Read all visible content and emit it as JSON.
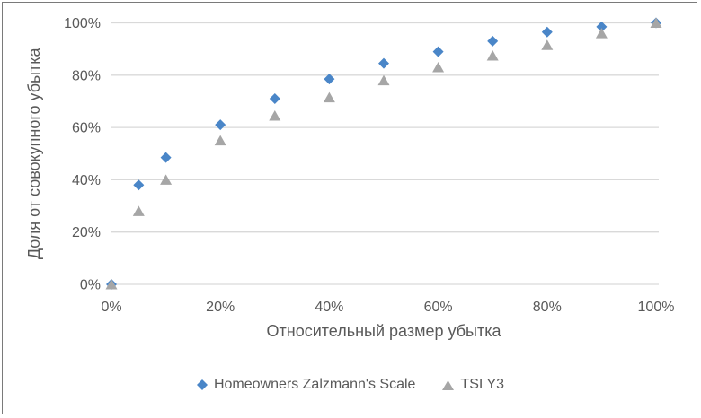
{
  "chart_data": {
    "type": "scatter",
    "x": [
      0,
      5,
      10,
      20,
      30,
      40,
      50,
      60,
      70,
      80,
      90,
      100
    ],
    "series": [
      {
        "name": "Homeowners Zalzmann's Scale",
        "marker": "diamond",
        "color": "#4A86C8",
        "values": [
          0,
          38,
          48.5,
          61,
          71,
          78.5,
          84.5,
          89,
          93,
          96.5,
          98.5,
          100
        ]
      },
      {
        "name": "TSI Y3",
        "marker": "triangle",
        "color": "#A6A6A6",
        "values": [
          0,
          28,
          40,
          55,
          64.5,
          71.5,
          78,
          83,
          87.5,
          91.5,
          96,
          100
        ]
      }
    ],
    "title": "",
    "xlabel": "Относительный размер убытка",
    "ylabel": "Доля от совокупного убытка",
    "xlim": [
      0,
      100
    ],
    "ylim": [
      0,
      100
    ],
    "x_ticks": {
      "values": [
        0,
        20,
        40,
        60,
        80,
        100
      ],
      "labels": [
        "0%",
        "20%",
        "40%",
        "60%",
        "80%",
        "100%"
      ]
    },
    "y_ticks": {
      "values": [
        0,
        20,
        40,
        60,
        80,
        100
      ],
      "labels": [
        "0%",
        "20%",
        "40%",
        "60%",
        "80%",
        "100%"
      ]
    },
    "grid": "horizontal",
    "legend_position": "bottom",
    "colors": {
      "gridline": "#D9D9D9",
      "axis_text": "#595959",
      "frame_border": "#7A7A7A",
      "background": "#FFFFFF"
    }
  }
}
